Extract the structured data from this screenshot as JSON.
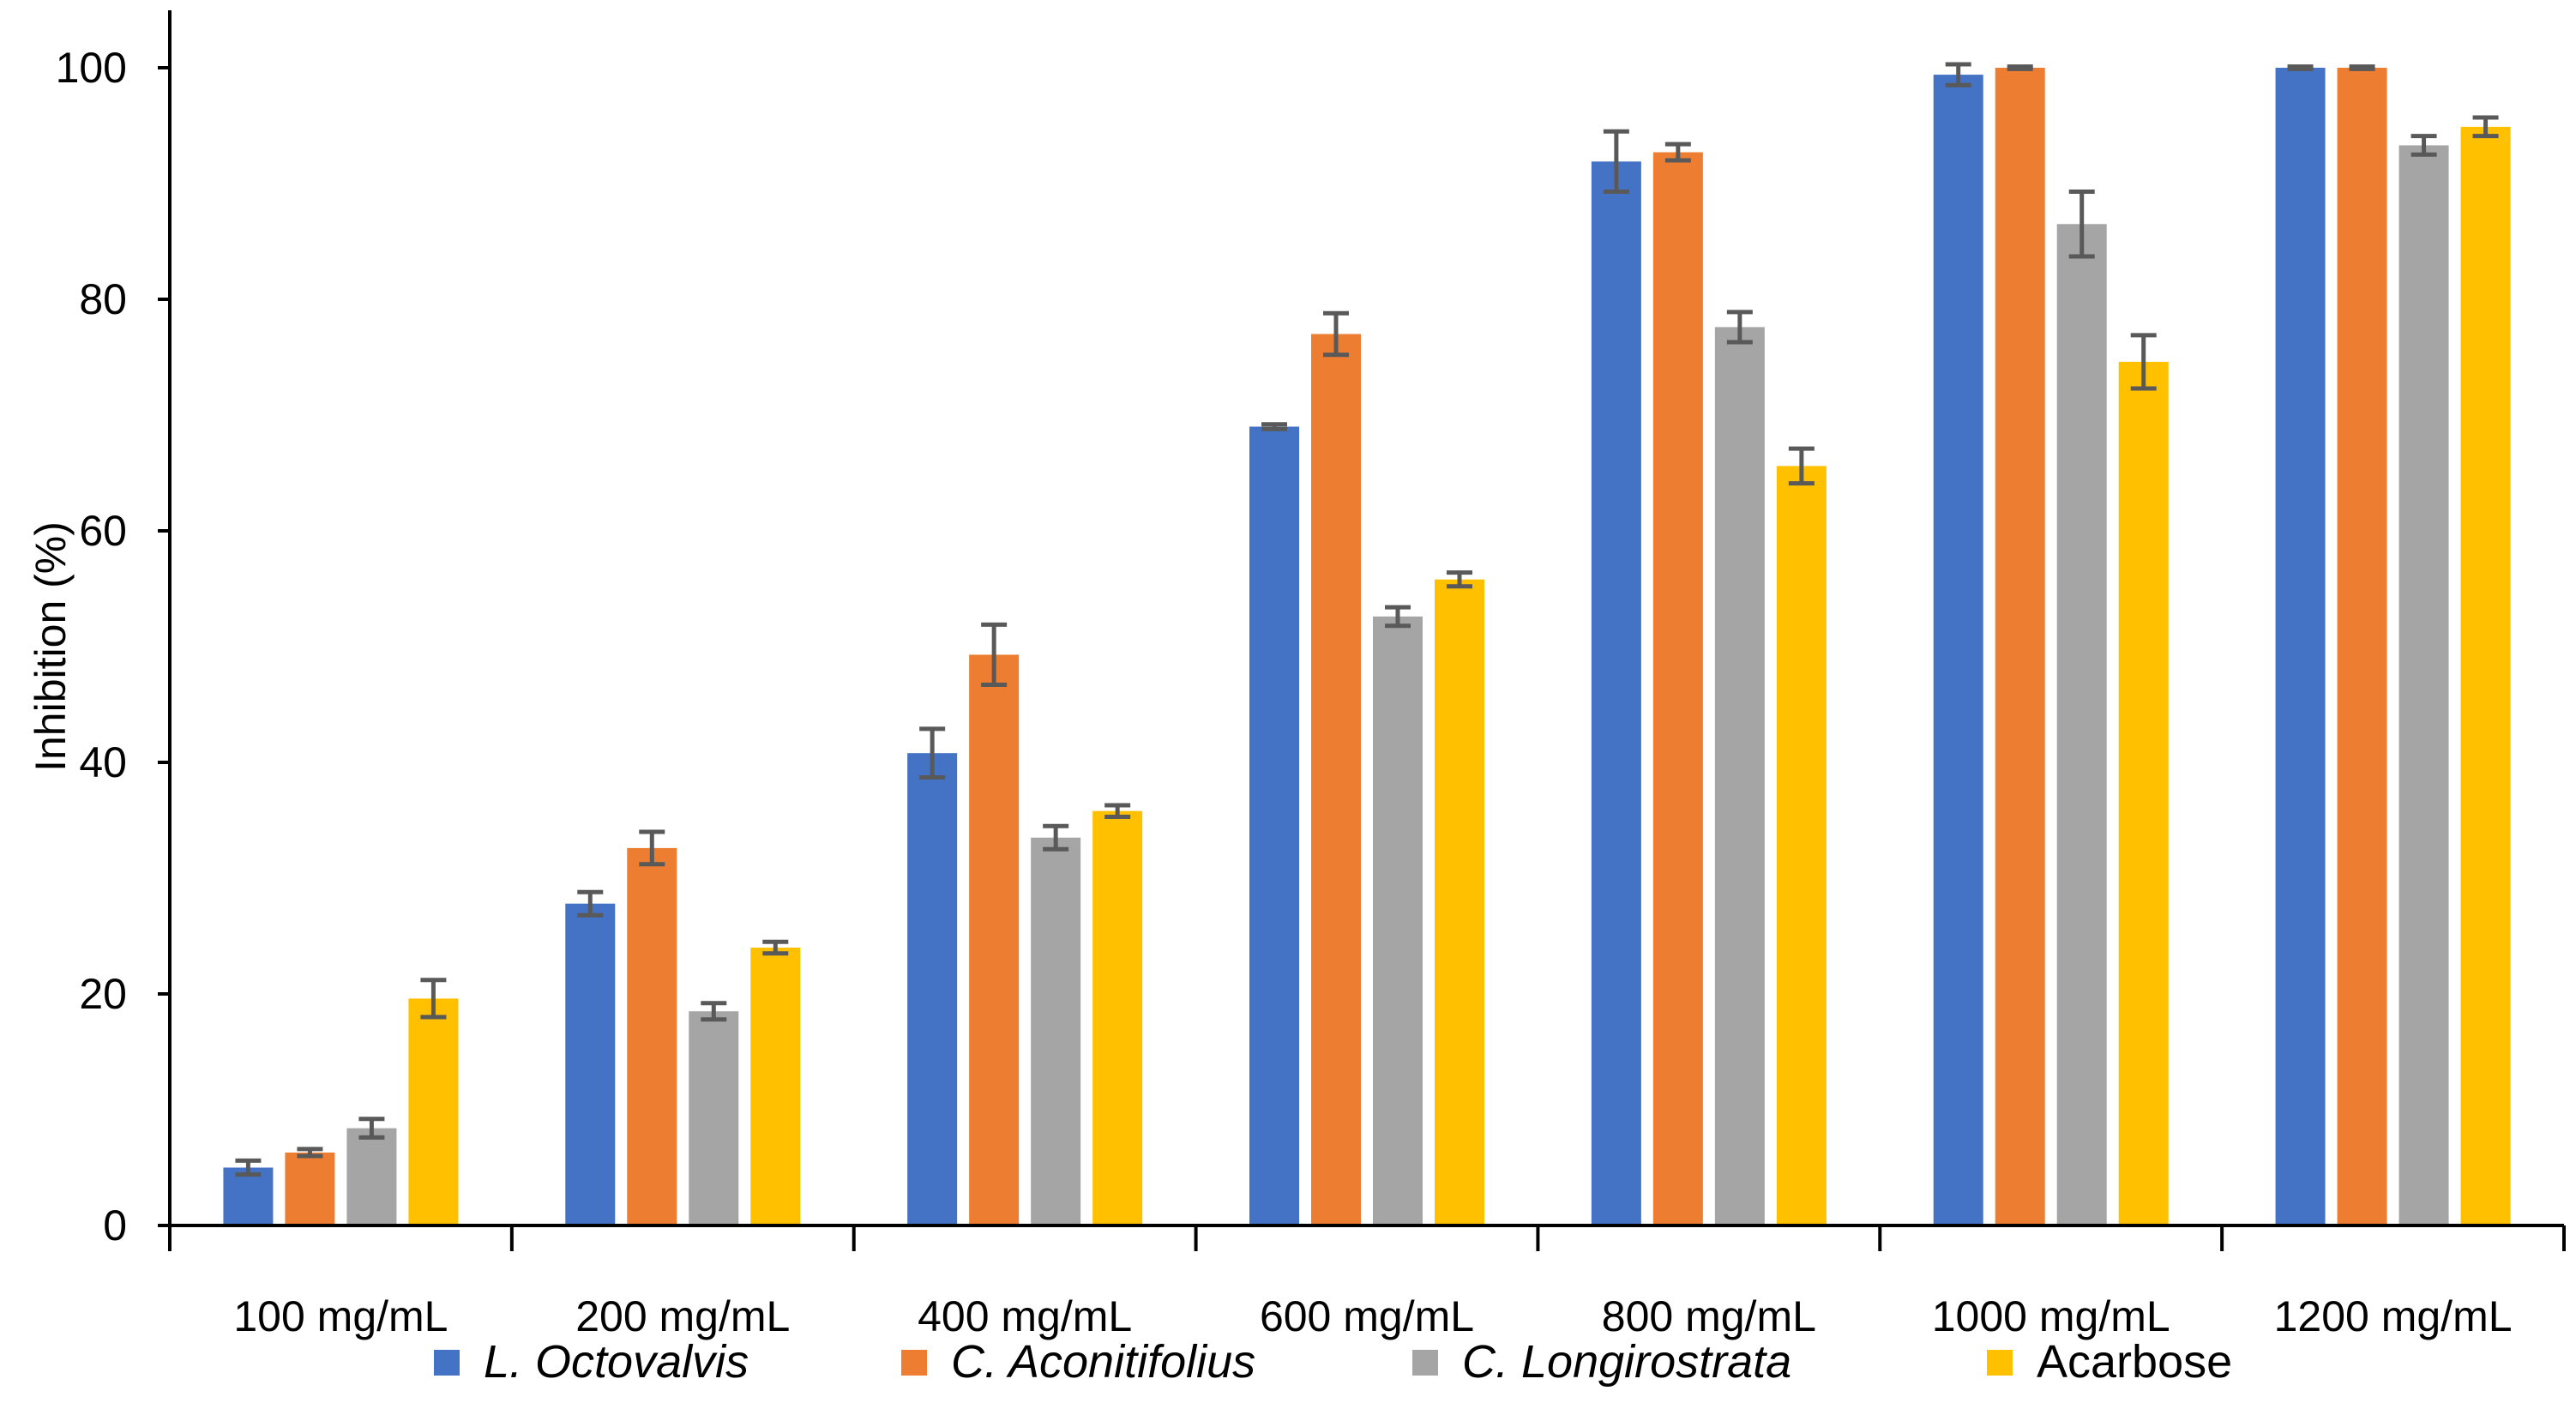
{
  "chart_data": {
    "type": "bar",
    "ylabel": "Inhibition (%)",
    "ylim": [
      0,
      100
    ],
    "yticks": [
      0,
      20,
      40,
      60,
      80,
      100
    ],
    "grid": false,
    "legend_position": "bottom",
    "categories": [
      "100 mg/mL",
      "200 mg/mL",
      "400 mg/mL",
      "600 mg/mL",
      "800 mg/mL",
      "1000 mg/mL",
      "1200 mg/mL"
    ],
    "series": [
      {
        "name": "L. Octovalvis",
        "italic": true,
        "color": "#4472C4",
        "values": [
          5.0,
          27.8,
          40.8,
          69.0,
          91.9,
          99.4,
          100.0
        ],
        "errors": [
          0.6,
          1.0,
          2.1,
          0.2,
          2.6,
          0.9,
          0.1
        ]
      },
      {
        "name": "C. Aconitifolius",
        "italic": true,
        "color": "#ED7D31",
        "values": [
          6.3,
          32.6,
          49.3,
          77.0,
          92.7,
          100.0,
          100.0
        ],
        "errors": [
          0.3,
          1.4,
          2.6,
          1.8,
          0.7,
          0.1,
          0.1
        ]
      },
      {
        "name": "C. Longirostrata",
        "italic": true,
        "color": "#A5A5A5",
        "values": [
          8.4,
          18.5,
          33.5,
          52.6,
          77.6,
          86.5,
          93.3
        ],
        "errors": [
          0.8,
          0.7,
          1.0,
          0.8,
          1.3,
          2.8,
          0.8
        ]
      },
      {
        "name": "Acarbose",
        "italic": false,
        "color": "#FFC000",
        "values": [
          19.6,
          24.0,
          35.8,
          55.8,
          65.6,
          74.6,
          94.9
        ],
        "errors": [
          1.6,
          0.5,
          0.5,
          0.6,
          1.5,
          2.3,
          0.8
        ]
      }
    ],
    "error_bar_color": "#595959"
  }
}
